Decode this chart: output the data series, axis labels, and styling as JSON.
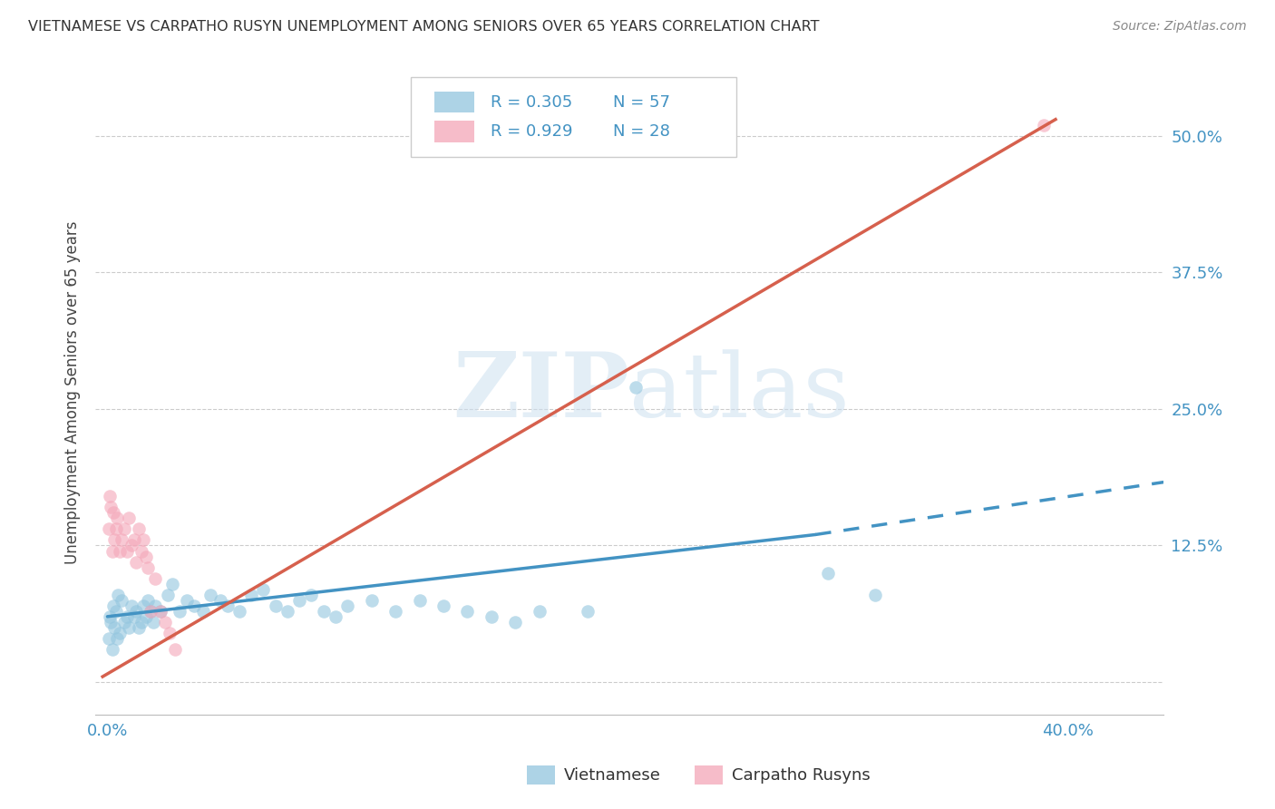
{
  "title": "VIETNAMESE VS CARPATHO RUSYN UNEMPLOYMENT AMONG SENIORS OVER 65 YEARS CORRELATION CHART",
  "source": "Source: ZipAtlas.com",
  "ylabel": "Unemployment Among Seniors over 65 years",
  "xlabel_ticks": [
    "0.0%",
    "",
    "",
    "",
    "40.0%"
  ],
  "xlabel_vals": [
    0.0,
    0.1,
    0.2,
    0.3,
    0.4
  ],
  "ylabel_ticks_right": [
    "50.0%",
    "37.5%",
    "25.0%",
    "12.5%",
    ""
  ],
  "ylabel_vals": [
    0.5,
    0.375,
    0.25,
    0.125,
    0.0
  ],
  "ylim": [
    -0.03,
    0.56
  ],
  "xlim": [
    -0.005,
    0.44
  ],
  "watermark_line1": "ZIP",
  "watermark_line2": "atlas",
  "legend_R_blue": "R = 0.305",
  "legend_N_blue": "N = 57",
  "legend_R_pink": "R = 0.929",
  "legend_N_pink": "N = 28",
  "legend_label_blue": "Vietnamese",
  "legend_label_pink": "Carpatho Rusyns",
  "blue_color": "#92c5de",
  "pink_color": "#f4a6b8",
  "blue_line_color": "#4393c3",
  "pink_line_color": "#d6604d",
  "blue_scatter": [
    [
      0.0005,
      0.04
    ],
    [
      0.001,
      0.06
    ],
    [
      0.0015,
      0.055
    ],
    [
      0.002,
      0.03
    ],
    [
      0.0025,
      0.07
    ],
    [
      0.003,
      0.05
    ],
    [
      0.0035,
      0.065
    ],
    [
      0.004,
      0.04
    ],
    [
      0.0045,
      0.08
    ],
    [
      0.005,
      0.045
    ],
    [
      0.006,
      0.075
    ],
    [
      0.007,
      0.055
    ],
    [
      0.008,
      0.06
    ],
    [
      0.009,
      0.05
    ],
    [
      0.01,
      0.07
    ],
    [
      0.011,
      0.06
    ],
    [
      0.012,
      0.065
    ],
    [
      0.013,
      0.05
    ],
    [
      0.014,
      0.055
    ],
    [
      0.015,
      0.07
    ],
    [
      0.016,
      0.06
    ],
    [
      0.017,
      0.075
    ],
    [
      0.018,
      0.065
    ],
    [
      0.019,
      0.055
    ],
    [
      0.02,
      0.07
    ],
    [
      0.022,
      0.065
    ],
    [
      0.025,
      0.08
    ],
    [
      0.027,
      0.09
    ],
    [
      0.03,
      0.065
    ],
    [
      0.033,
      0.075
    ],
    [
      0.036,
      0.07
    ],
    [
      0.04,
      0.065
    ],
    [
      0.043,
      0.08
    ],
    [
      0.047,
      0.075
    ],
    [
      0.05,
      0.07
    ],
    [
      0.055,
      0.065
    ],
    [
      0.06,
      0.08
    ],
    [
      0.065,
      0.085
    ],
    [
      0.07,
      0.07
    ],
    [
      0.075,
      0.065
    ],
    [
      0.08,
      0.075
    ],
    [
      0.085,
      0.08
    ],
    [
      0.09,
      0.065
    ],
    [
      0.095,
      0.06
    ],
    [
      0.1,
      0.07
    ],
    [
      0.11,
      0.075
    ],
    [
      0.12,
      0.065
    ],
    [
      0.13,
      0.075
    ],
    [
      0.14,
      0.07
    ],
    [
      0.15,
      0.065
    ],
    [
      0.16,
      0.06
    ],
    [
      0.17,
      0.055
    ],
    [
      0.18,
      0.065
    ],
    [
      0.2,
      0.065
    ],
    [
      0.22,
      0.27
    ],
    [
      0.3,
      0.1
    ],
    [
      0.32,
      0.08
    ]
  ],
  "pink_scatter": [
    [
      0.0005,
      0.14
    ],
    [
      0.001,
      0.17
    ],
    [
      0.0015,
      0.16
    ],
    [
      0.002,
      0.12
    ],
    [
      0.0025,
      0.155
    ],
    [
      0.003,
      0.13
    ],
    [
      0.0035,
      0.14
    ],
    [
      0.004,
      0.15
    ],
    [
      0.005,
      0.12
    ],
    [
      0.006,
      0.13
    ],
    [
      0.007,
      0.14
    ],
    [
      0.008,
      0.12
    ],
    [
      0.009,
      0.15
    ],
    [
      0.01,
      0.125
    ],
    [
      0.011,
      0.13
    ],
    [
      0.012,
      0.11
    ],
    [
      0.013,
      0.14
    ],
    [
      0.014,
      0.12
    ],
    [
      0.015,
      0.13
    ],
    [
      0.016,
      0.115
    ],
    [
      0.017,
      0.105
    ],
    [
      0.018,
      0.065
    ],
    [
      0.02,
      0.095
    ],
    [
      0.022,
      0.065
    ],
    [
      0.024,
      0.055
    ],
    [
      0.026,
      0.045
    ],
    [
      0.028,
      0.03
    ],
    [
      0.39,
      0.51
    ]
  ],
  "blue_trendline_solid": [
    [
      0.0,
      0.06
    ],
    [
      0.295,
      0.135
    ]
  ],
  "blue_trendline_dashed": [
    [
      0.295,
      0.135
    ],
    [
      0.44,
      0.183
    ]
  ],
  "pink_trendline": [
    [
      -0.002,
      0.005
    ],
    [
      0.395,
      0.515
    ]
  ]
}
